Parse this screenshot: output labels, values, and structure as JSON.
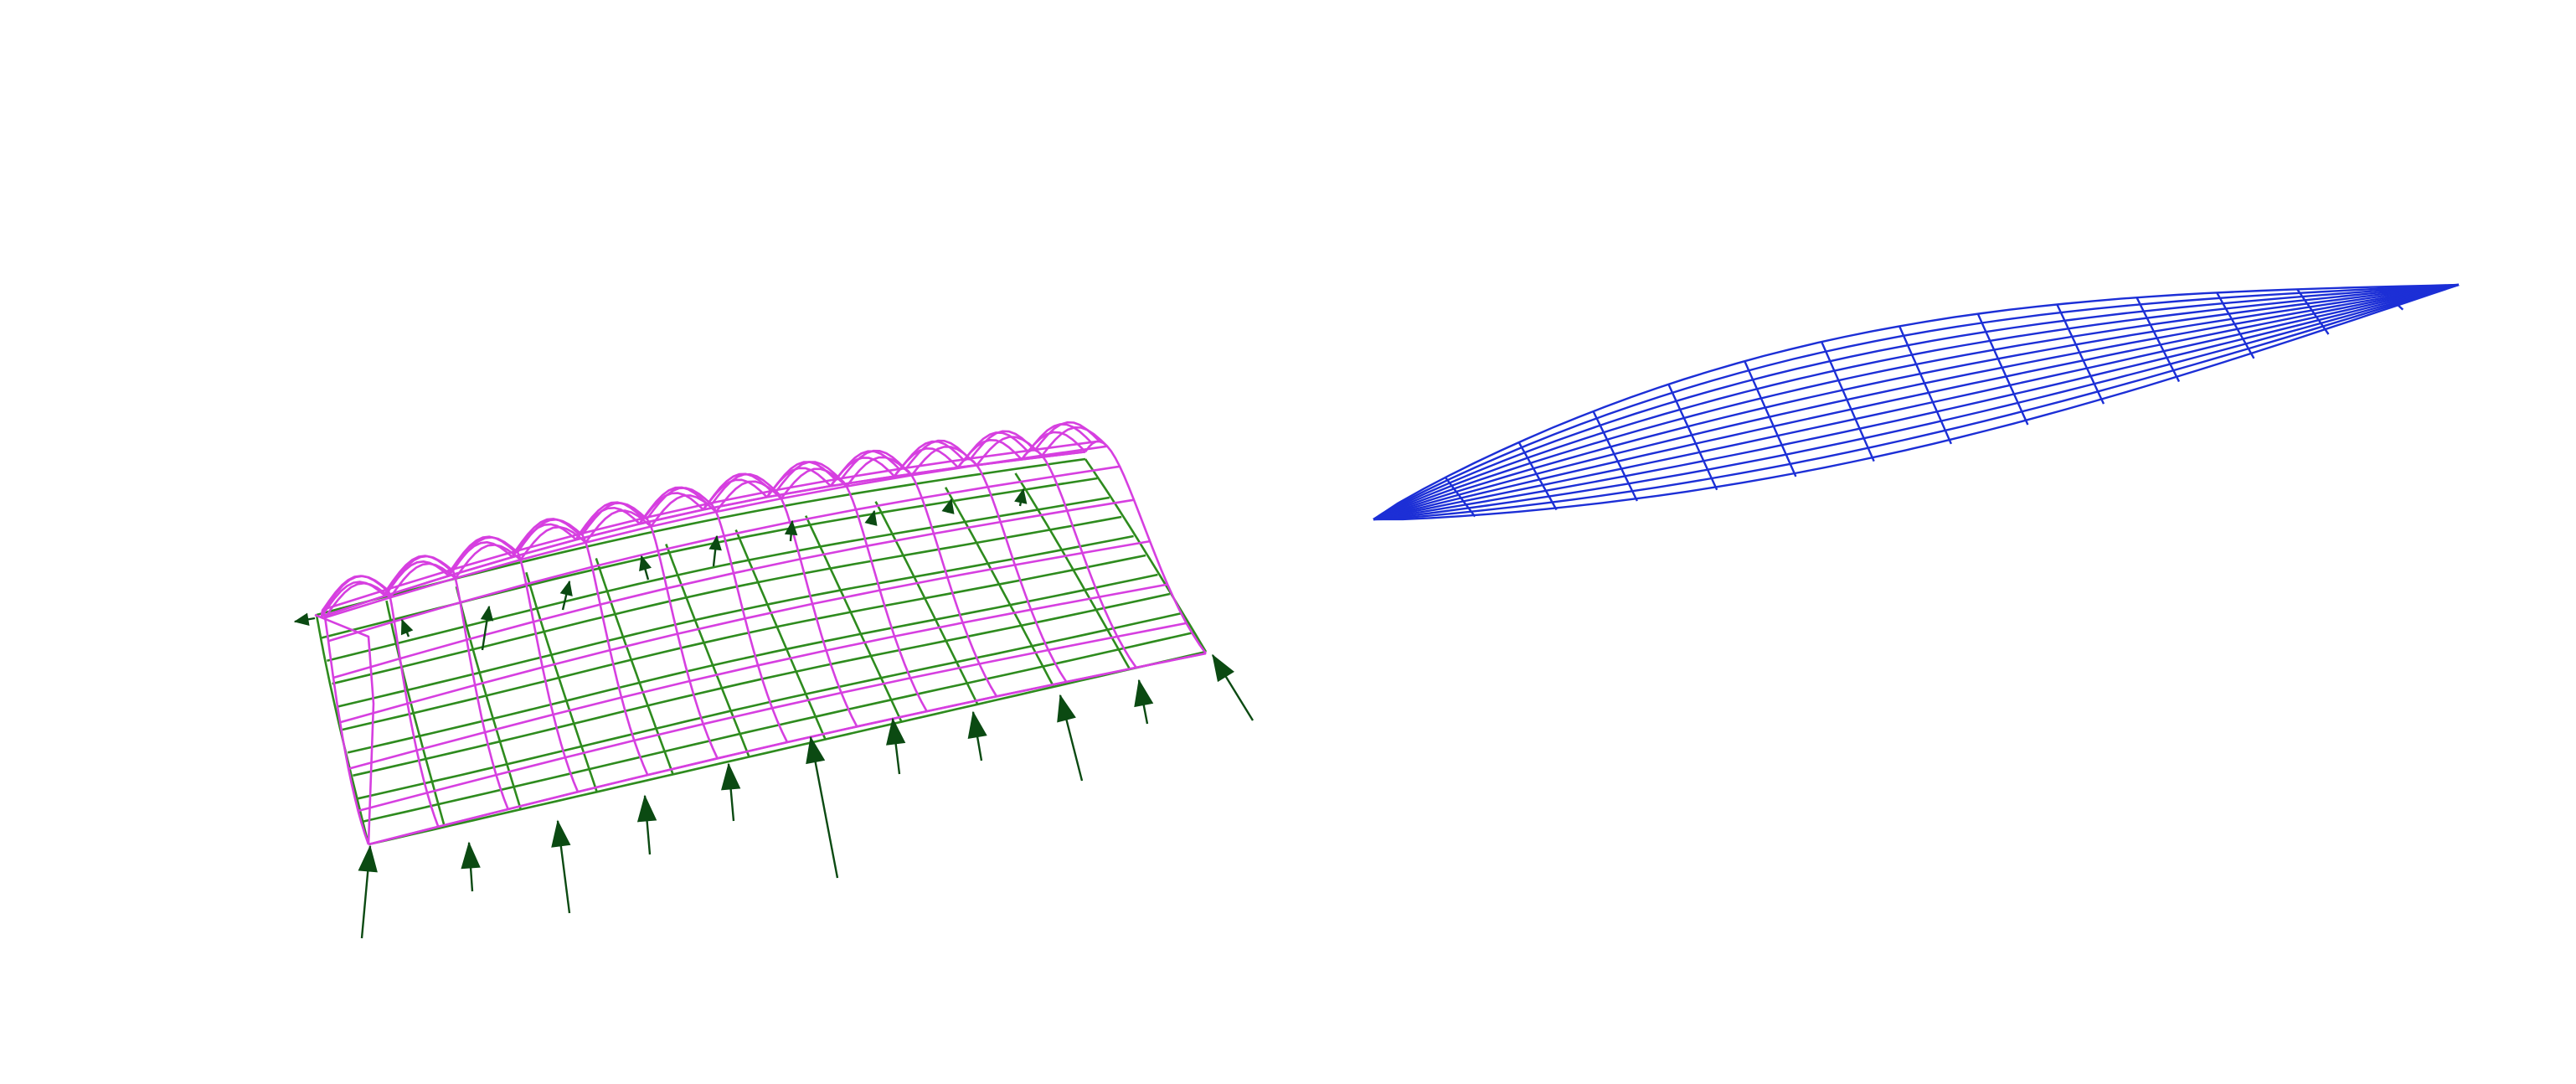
{
  "canvas": {
    "background": "#ffffff"
  },
  "colors": {
    "form_mesh": "#d63fe0",
    "thrust_network": "#2e8b1e",
    "reaction_arrows": "#0b4a12",
    "force_diagram": "#1c2fd6",
    "annotation": "#e8334a"
  },
  "elements": {
    "form_diagram": "form-diagram-mesh",
    "reactions": "support-reaction-arrows",
    "force_diagram": "force-diagram-mesh",
    "link_top": "link-arrow-top",
    "link_bottom": "link-arrow-bottom",
    "tick_a": "dimension-tick-top",
    "tick_b": "dimension-tick-right"
  }
}
